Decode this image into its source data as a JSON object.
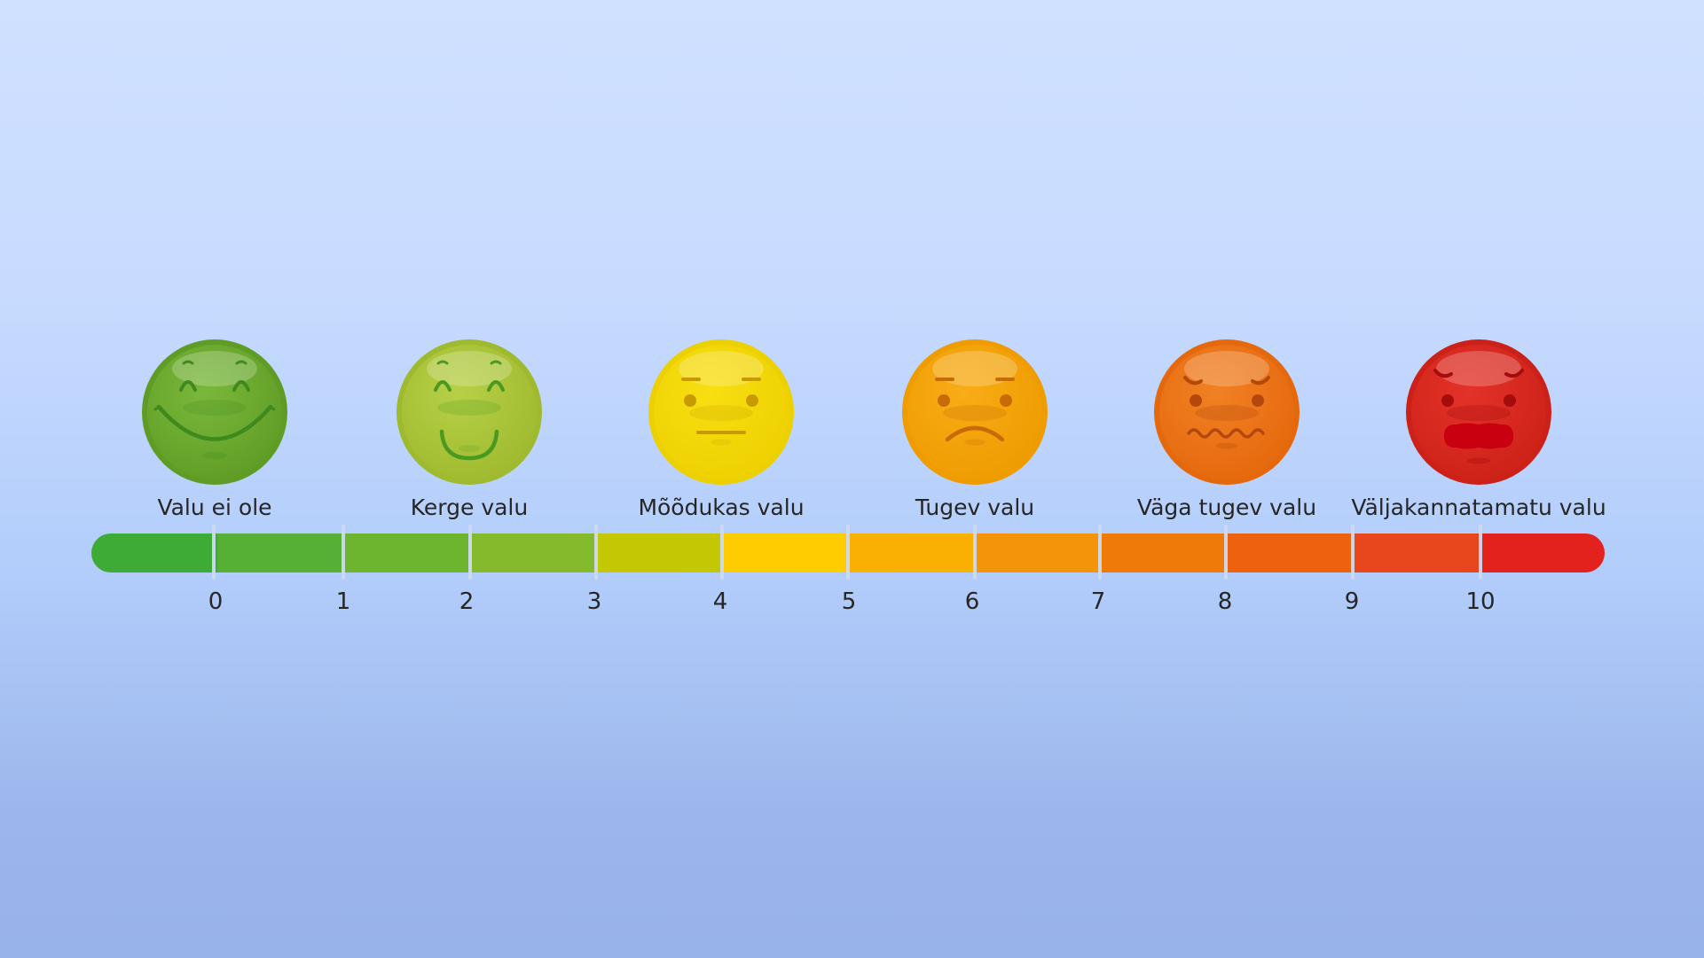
{
  "pain_scale": {
    "faces": [
      {
        "label": "Valu ei ole",
        "color": "#7ab83b",
        "rim": "#5f9c25",
        "feature": "#3f8a1f",
        "expression": "big-smile",
        "icon": "laughing-face-icon"
      },
      {
        "label": "Kerge valu",
        "color": "#b7d048",
        "rim": "#9fba2e",
        "feature": "#4a9a22",
        "expression": "smile",
        "icon": "smiling-face-icon"
      },
      {
        "label": "Mõõdukas valu",
        "color": "#f8df12",
        "rim": "#edd000",
        "feature": "#c99a00",
        "expression": "neutral",
        "icon": "neutral-face-icon"
      },
      {
        "label": "Tugev valu",
        "color": "#f8ac16",
        "rim": "#ee9c00",
        "feature": "#c86a06",
        "expression": "frown",
        "icon": "frowning-face-icon"
      },
      {
        "label": "Väga tugev valu",
        "color": "#f18124",
        "rim": "#e5680c",
        "feature": "#b4480c",
        "expression": "wavy",
        "icon": "distressed-face-icon"
      },
      {
        "label": "Väljakannatamatu valu",
        "color": "#e43228",
        "rim": "#cc2118",
        "feature": "#a50c0c",
        "expression": "crying",
        "icon": "crying-face-icon"
      }
    ],
    "ticks": [
      "0",
      "1",
      "2",
      "3",
      "4",
      "5",
      "6",
      "7",
      "8",
      "9",
      "10"
    ],
    "segment_colors": [
      "#3fab37",
      "#56b035",
      "#6eb52f",
      "#86ba2d",
      "#c4c703",
      "#ffcc02",
      "#f9b002",
      "#f39409",
      "#f07a07",
      "#ec620e",
      "#e8461d",
      "#e3221d"
    ]
  }
}
